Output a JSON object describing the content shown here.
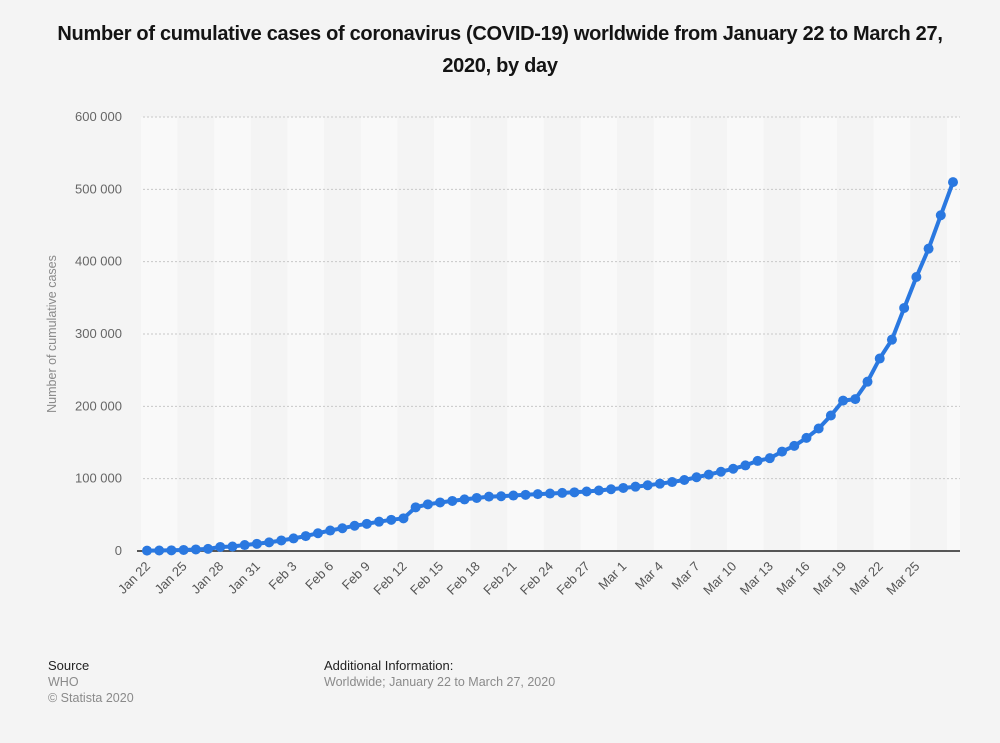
{
  "title": "Number of cumulative cases of coronavirus (COVID-19) worldwide from January 22 to March 27, 2020, by day",
  "footer": {
    "source_label": "Source",
    "source": "WHO",
    "copyright": "© Statista 2020",
    "additional_label": "Additional Information:",
    "additional": "Worldwide; January 22 to March 27, 2020"
  },
  "colors": {
    "line": "#2a78e0",
    "axis": "#222222",
    "grid": "#c8c8c8",
    "band_light": "#f9f9f9",
    "band_dark": "#f4f4f4"
  },
  "chart_data": {
    "type": "line",
    "title": "Number of cumulative cases of coronavirus (COVID-19) worldwide from January 22 to March 27, 2020, by day",
    "xlabel": "",
    "ylabel": "Number of cumulative cases",
    "ylim": [
      0,
      600000
    ],
    "yticks": [
      0,
      100000,
      200000,
      300000,
      400000,
      500000,
      600000
    ],
    "ytick_labels": [
      "0",
      "100 000",
      "200 000",
      "300 000",
      "400 000",
      "500 000",
      "600 000"
    ],
    "grid": true,
    "x_tick_labels": [
      "Jan 22",
      "Jan 25",
      "Jan 28",
      "Jan 31",
      "Feb 3",
      "Feb 6",
      "Feb 9",
      "Feb 12",
      "Feb 15",
      "Feb 18",
      "Feb 21",
      "Feb 24",
      "Feb 27",
      "Mar 1",
      "Mar 4",
      "Mar 7",
      "Mar 10",
      "Mar 13",
      "Mar 16",
      "Mar 19",
      "Mar 22",
      "Mar 25"
    ],
    "x_tick_every": 3,
    "series": [
      {
        "name": "Cumulative cases",
        "values": [
          555,
          654,
          941,
          1434,
          2118,
          2927,
          5578,
          6166,
          8234,
          9927,
          11950,
          14557,
          17391,
          20630,
          24554,
          28276,
          31481,
          34886,
          37558,
          40554,
          43103,
          45171,
          60381,
          64543,
          67100,
          69197,
          71329,
          73332,
          75184,
          75700,
          76677,
          77673,
          78651,
          79407,
          80278,
          81109,
          82294,
          83652,
          85403,
          87137,
          88948,
          90870,
          93090,
          95324,
          98192,
          101927,
          105586,
          109577,
          113702,
          118319,
          124519,
          128343,
          137445,
          145336,
          156400,
          169387,
          187302,
          207860,
          210000,
          234073,
          266073,
          292142,
          335997,
          378830,
          417966,
          464140,
          510000
        ]
      }
    ]
  }
}
